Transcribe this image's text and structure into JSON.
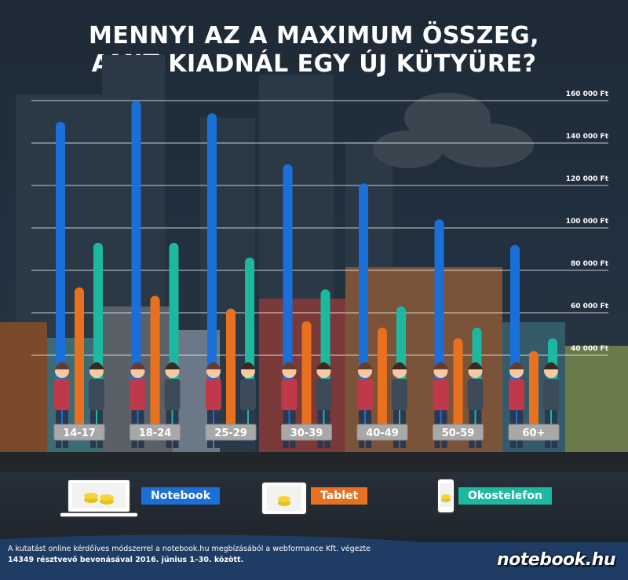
{
  "title": [
    "MENNYI AZ A MAXIMUM ÖSSZEG,",
    "AMIT KIADNÁL EGY ÚJ KÜTYÜRE?"
  ],
  "chart_data": {
    "type": "bar",
    "title": "MENNYI AZ A MAXIMUM ÖSSZEG, AMIT KIADNÁL EGY ÚJ KÜTYÜRE?",
    "categories": [
      "14-17",
      "18-24",
      "25-29",
      "30-39",
      "40-49",
      "50-59",
      "60+"
    ],
    "series": [
      {
        "name": "Notebook",
        "color": "#1b6fd8",
        "values": [
          150000,
          160000,
          154000,
          130000,
          121000,
          104000,
          92000
        ]
      },
      {
        "name": "Tablet",
        "color": "#e8711f",
        "values": [
          72000,
          68000,
          62000,
          56000,
          53000,
          48000,
          42000
        ]
      },
      {
        "name": "Okostelefon",
        "color": "#1db8a0",
        "values": [
          93000,
          93000,
          86000,
          71000,
          63000,
          53000,
          48000
        ]
      }
    ],
    "y_ticks": [
      {
        "value": 40000,
        "label": "40 000 Ft"
      },
      {
        "value": 60000,
        "label": "60 000 Ft"
      },
      {
        "value": 80000,
        "label": "80 000 Ft"
      },
      {
        "value": 100000,
        "label": "100 000 Ft"
      },
      {
        "value": 120000,
        "label": "120 000 Ft"
      },
      {
        "value": 140000,
        "label": "140 000 Ft"
      },
      {
        "value": 160000,
        "label": "160 000 Ft"
      }
    ],
    "ylim": [
      0,
      160000
    ],
    "grid": true,
    "legend": "bottom"
  },
  "legend": {
    "notebook": "Notebook",
    "tablet": "Tablet",
    "okostelefon": "Okostelefon"
  },
  "colors": {
    "notebook": "#1b6fd8",
    "tablet": "#e8711f",
    "okostelefon": "#1db8a0",
    "footer": "#1e3c64"
  },
  "footer": {
    "line1": "A kutatást online kérdőíves módszerrel a notebook.hu megbízásából a webformance Kft. végezte",
    "line2": "14349 résztvevő bevonásával 2016. június 1–30. között.",
    "brand": "notebook.hu"
  }
}
